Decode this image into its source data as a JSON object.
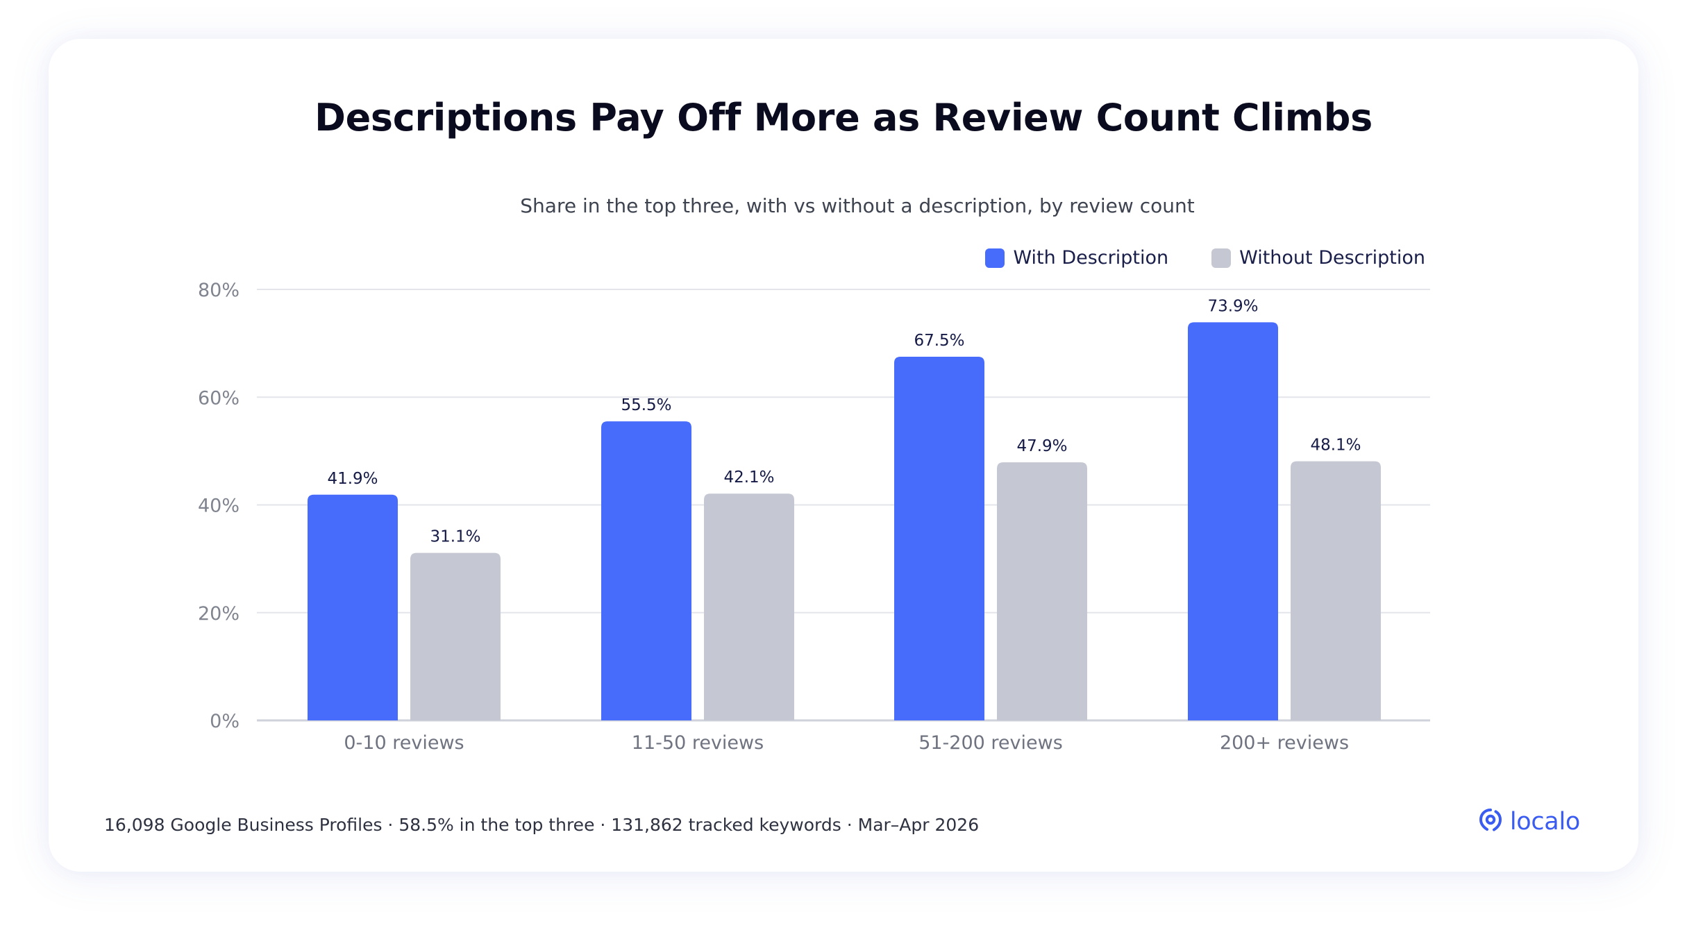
{
  "header": {
    "title": "Descriptions Pay Off More as Review Count Climbs",
    "subtitle": "Share in the top three, with vs without a description, by review count"
  },
  "legend": {
    "items": [
      {
        "label": "With Description",
        "color": "#476bfb"
      },
      {
        "label": "Without Description",
        "color": "#c5c8d2"
      }
    ]
  },
  "chart_data": {
    "type": "bar",
    "categories": [
      "0-10 reviews",
      "11-50 reviews",
      "51-200 reviews",
      "200+ reviews"
    ],
    "series": [
      {
        "name": "With Description",
        "values": [
          41.9,
          55.5,
          67.5,
          73.9
        ],
        "labels": [
          "41.9%",
          "55.5%",
          "67.5%",
          "73.9%"
        ],
        "color": "#476bfb"
      },
      {
        "name": "Without Description",
        "values": [
          31.1,
          42.1,
          47.9,
          48.1
        ],
        "labels": [
          "31.1%",
          "42.1%",
          "47.9%",
          "48.1%"
        ],
        "color": "#c5c8d2"
      }
    ],
    "ylim": [
      0,
      80
    ],
    "yticks": [
      0,
      20,
      40,
      60,
      80
    ],
    "ytick_labels": [
      "0%",
      "20%",
      "40%",
      "60%",
      "80%"
    ],
    "grid": true,
    "legend_position": "top-right"
  },
  "footer": {
    "note": "16,098 Google Business Profiles · 58.5% in the top three · 131,862 tracked keywords · Mar–Apr 2026",
    "brand": "localo",
    "brand_icon": "location-pin-icon",
    "brand_color": "#3a5cf0"
  }
}
